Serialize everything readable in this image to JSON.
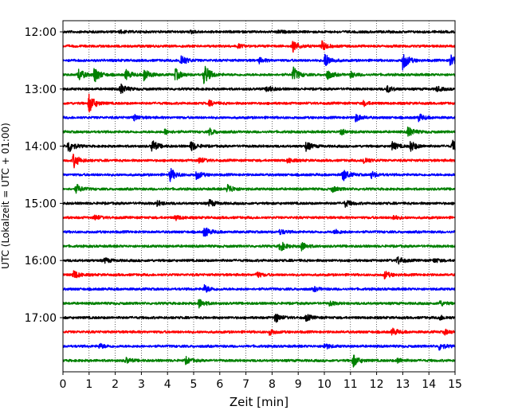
{
  "chart_data": {
    "type": "line",
    "title": "",
    "xlabel": "Zeit  [min]",
    "ylabel": "UTC (Lokalzeit = UTC + 01:00)",
    "xlim": [
      0,
      15
    ],
    "x_ticks": [
      "0",
      "1",
      "2",
      "3",
      "4",
      "5",
      "6",
      "7",
      "8",
      "9",
      "10",
      "11",
      "12",
      "13",
      "14",
      "15"
    ],
    "y_ticks": [
      "12:00",
      "13:00",
      "14:00",
      "15:00",
      "16:00",
      "17:00"
    ],
    "grid": "vertical dotted lines at each minute",
    "trace_interval_min": 15,
    "start_time": "12:00",
    "trace_colors": [
      "#000000",
      "#ff0000",
      "#0000ff",
      "#008000"
    ],
    "series": [
      {
        "start": "12:00",
        "color": "#000000",
        "events": [
          [
            4.9,
            0.3
          ],
          [
            8.2,
            0.3
          ],
          [
            2.2,
            0.3
          ]
        ]
      },
      {
        "start": "12:15",
        "color": "#ff0000",
        "events": [
          [
            8.8,
            1.4
          ],
          [
            9.9,
            1.2
          ],
          [
            6.7,
            0.4
          ]
        ]
      },
      {
        "start": "12:30",
        "color": "#0000ff",
        "events": [
          [
            4.5,
            1.6
          ],
          [
            10.0,
            2.0
          ],
          [
            13.0,
            2.4
          ],
          [
            14.8,
            1.6
          ],
          [
            7.5,
            0.6
          ]
        ]
      },
      {
        "start": "12:45",
        "color": "#008000",
        "events": [
          [
            0.6,
            1.6
          ],
          [
            1.2,
            1.9
          ],
          [
            2.4,
            1.2
          ],
          [
            3.1,
            1.6
          ],
          [
            4.3,
            1.5
          ],
          [
            5.4,
            2.8
          ],
          [
            8.8,
            1.9
          ],
          [
            10.1,
            1.2
          ],
          [
            11.0,
            0.7
          ]
        ]
      },
      {
        "start": "13:00",
        "color": "#000000",
        "events": [
          [
            2.2,
            1.3
          ],
          [
            7.8,
            0.9
          ],
          [
            12.4,
            0.8
          ],
          [
            14.3,
            0.6
          ]
        ]
      },
      {
        "start": "13:15",
        "color": "#ff0000",
        "events": [
          [
            1.0,
            2.4
          ],
          [
            5.6,
            0.6
          ],
          [
            11.5,
            0.6
          ]
        ]
      },
      {
        "start": "13:30",
        "color": "#0000ff",
        "events": [
          [
            2.7,
            0.7
          ],
          [
            11.2,
            1.0
          ],
          [
            13.6,
            0.9
          ]
        ]
      },
      {
        "start": "13:45",
        "color": "#008000",
        "events": [
          [
            3.9,
            0.6
          ],
          [
            5.6,
            0.8
          ],
          [
            10.6,
            0.9
          ],
          [
            13.2,
            1.3
          ]
        ]
      },
      {
        "start": "14:00",
        "color": "#000000",
        "events": [
          [
            0.2,
            1.7
          ],
          [
            3.4,
            1.6
          ],
          [
            4.9,
            1.2
          ],
          [
            9.3,
            1.1
          ],
          [
            12.6,
            1.0
          ],
          [
            13.3,
            1.3
          ],
          [
            14.9,
            1.4
          ]
        ]
      },
      {
        "start": "14:15",
        "color": "#ff0000",
        "events": [
          [
            0.4,
            1.8
          ],
          [
            5.2,
            0.8
          ],
          [
            8.6,
            0.6
          ],
          [
            11.5,
            0.9
          ]
        ]
      },
      {
        "start": "14:30",
        "color": "#0000ff",
        "events": [
          [
            4.1,
            1.6
          ],
          [
            5.1,
            1.1
          ],
          [
            10.7,
            1.6
          ],
          [
            11.8,
            0.8
          ]
        ]
      },
      {
        "start": "14:45",
        "color": "#008000",
        "events": [
          [
            0.5,
            1.1
          ],
          [
            6.3,
            1.2
          ],
          [
            10.3,
            0.7
          ]
        ]
      },
      {
        "start": "15:00",
        "color": "#000000",
        "events": [
          [
            3.6,
            0.6
          ],
          [
            5.6,
            0.9
          ],
          [
            10.8,
            0.8
          ]
        ]
      },
      {
        "start": "15:15",
        "color": "#ff0000",
        "events": [
          [
            1.2,
            0.7
          ],
          [
            4.3,
            0.6
          ],
          [
            12.6,
            0.6
          ]
        ]
      },
      {
        "start": "15:30",
        "color": "#0000ff",
        "events": [
          [
            5.4,
            1.3
          ],
          [
            8.3,
            0.6
          ],
          [
            10.4,
            0.6
          ]
        ]
      },
      {
        "start": "15:45",
        "color": "#008000",
        "events": [
          [
            8.3,
            1.3
          ],
          [
            9.1,
            1.1
          ]
        ]
      },
      {
        "start": "16:00",
        "color": "#000000",
        "events": [
          [
            1.6,
            0.6
          ],
          [
            12.8,
            1.0
          ],
          [
            14.2,
            0.5
          ]
        ]
      },
      {
        "start": "16:15",
        "color": "#ff0000",
        "events": [
          [
            0.4,
            1.1
          ],
          [
            7.4,
            0.7
          ],
          [
            12.3,
            0.9
          ]
        ]
      },
      {
        "start": "16:30",
        "color": "#0000ff",
        "events": [
          [
            5.4,
            1.0
          ],
          [
            9.6,
            0.5
          ]
        ]
      },
      {
        "start": "16:45",
        "color": "#008000",
        "events": [
          [
            5.2,
            1.1
          ],
          [
            10.2,
            0.5
          ],
          [
            14.4,
            0.7
          ]
        ]
      },
      {
        "start": "17:00",
        "color": "#000000",
        "events": [
          [
            8.1,
            1.3
          ],
          [
            9.3,
            0.8
          ],
          [
            14.4,
            0.6
          ]
        ]
      },
      {
        "start": "17:15",
        "color": "#ff0000",
        "events": [
          [
            7.9,
            0.7
          ],
          [
            12.6,
            0.9
          ],
          [
            14.6,
            0.6
          ]
        ]
      },
      {
        "start": "17:30",
        "color": "#0000ff",
        "events": [
          [
            1.4,
            0.6
          ],
          [
            10.0,
            0.7
          ],
          [
            14.4,
            0.9
          ]
        ]
      },
      {
        "start": "17:45",
        "color": "#008000",
        "events": [
          [
            2.4,
            0.7
          ],
          [
            4.7,
            0.8
          ],
          [
            11.1,
            1.5
          ],
          [
            12.8,
            0.6
          ]
        ]
      }
    ]
  }
}
